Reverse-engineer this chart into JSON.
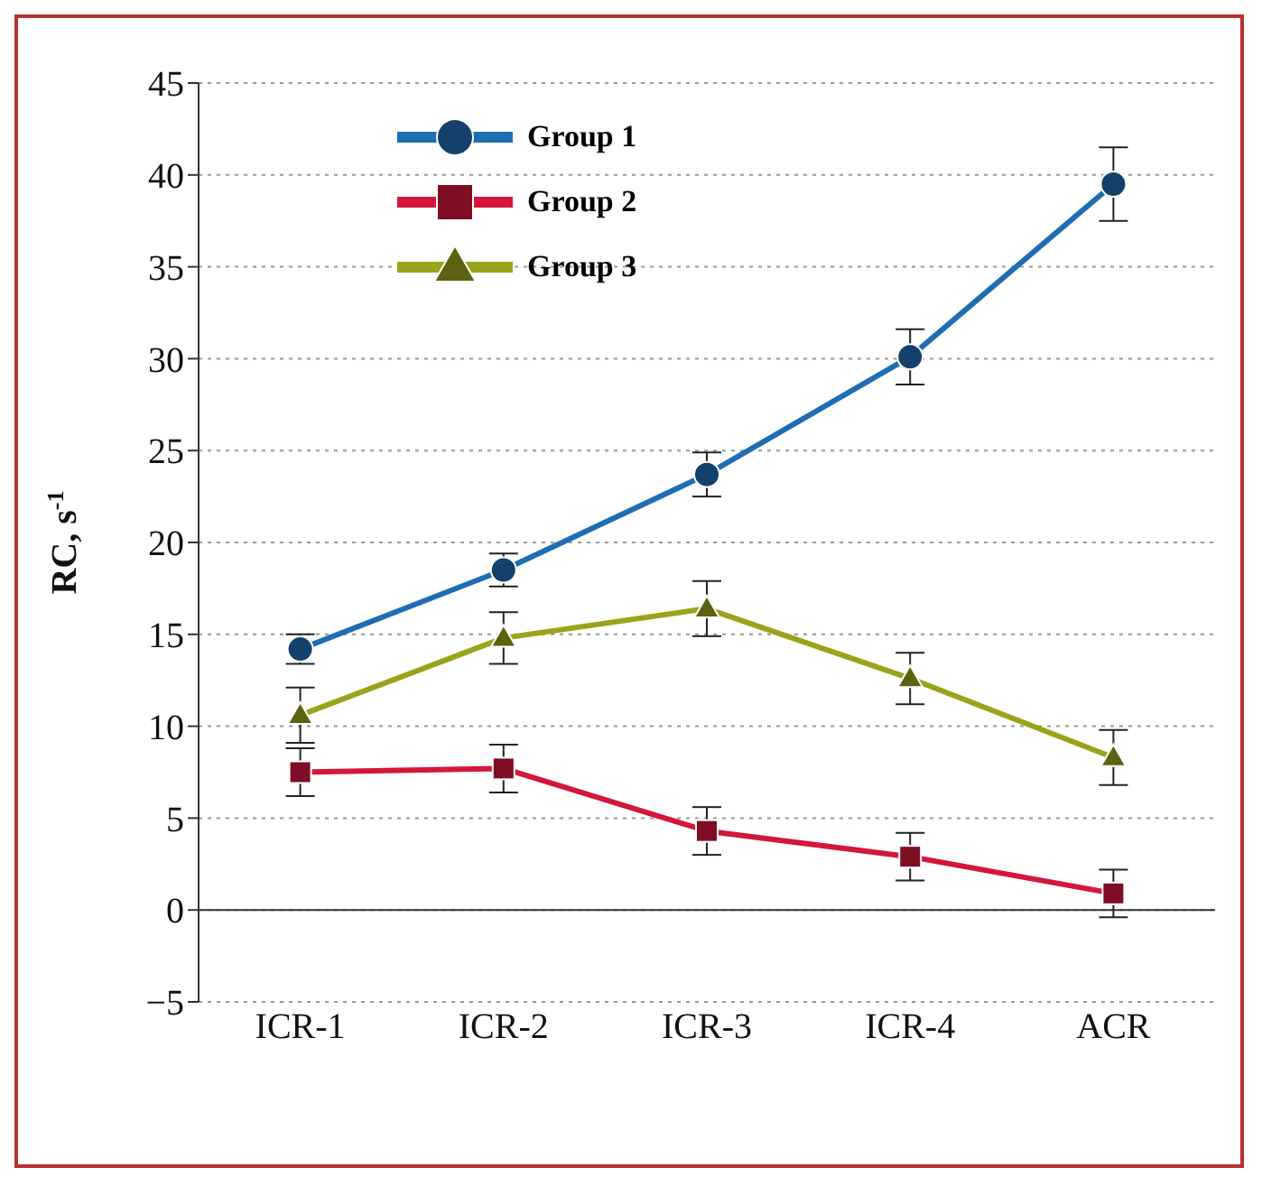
{
  "chart_data": {
    "type": "line",
    "ylabel": "RC, s$^{-1}$",
    "categories": [
      "ICR-1",
      "ICR-2",
      "ICR-3",
      "ICR-4",
      "ACR"
    ],
    "series": [
      {
        "name": "Group 1",
        "color": "#1f6db3",
        "marker": "circle",
        "values": [
          14.2,
          18.5,
          23.7,
          30.1,
          39.5
        ],
        "errors": [
          0.8,
          0.9,
          1.2,
          1.5,
          2
        ]
      },
      {
        "name": "Group 2",
        "color": "#d4163c",
        "marker": "square",
        "values": [
          7.5,
          7.7,
          4.3,
          2.9,
          0.9
        ],
        "errors": [
          1.3,
          1.3,
          1.3,
          1.3,
          1.3
        ]
      },
      {
        "name": "Group 3",
        "color": "#9aa31a",
        "marker": "triangle",
        "values": [
          10.6,
          14.8,
          16.4,
          12.6,
          8.3
        ],
        "errors": [
          1.5,
          1.4,
          1.5,
          1.4,
          1.5
        ]
      }
    ],
    "ylim": [
      -5,
      45
    ],
    "yticks": [
      -5,
      0,
      5,
      10,
      15,
      20,
      25,
      30,
      35,
      40,
      45
    ],
    "grid": "y",
    "legend": "top left"
  }
}
